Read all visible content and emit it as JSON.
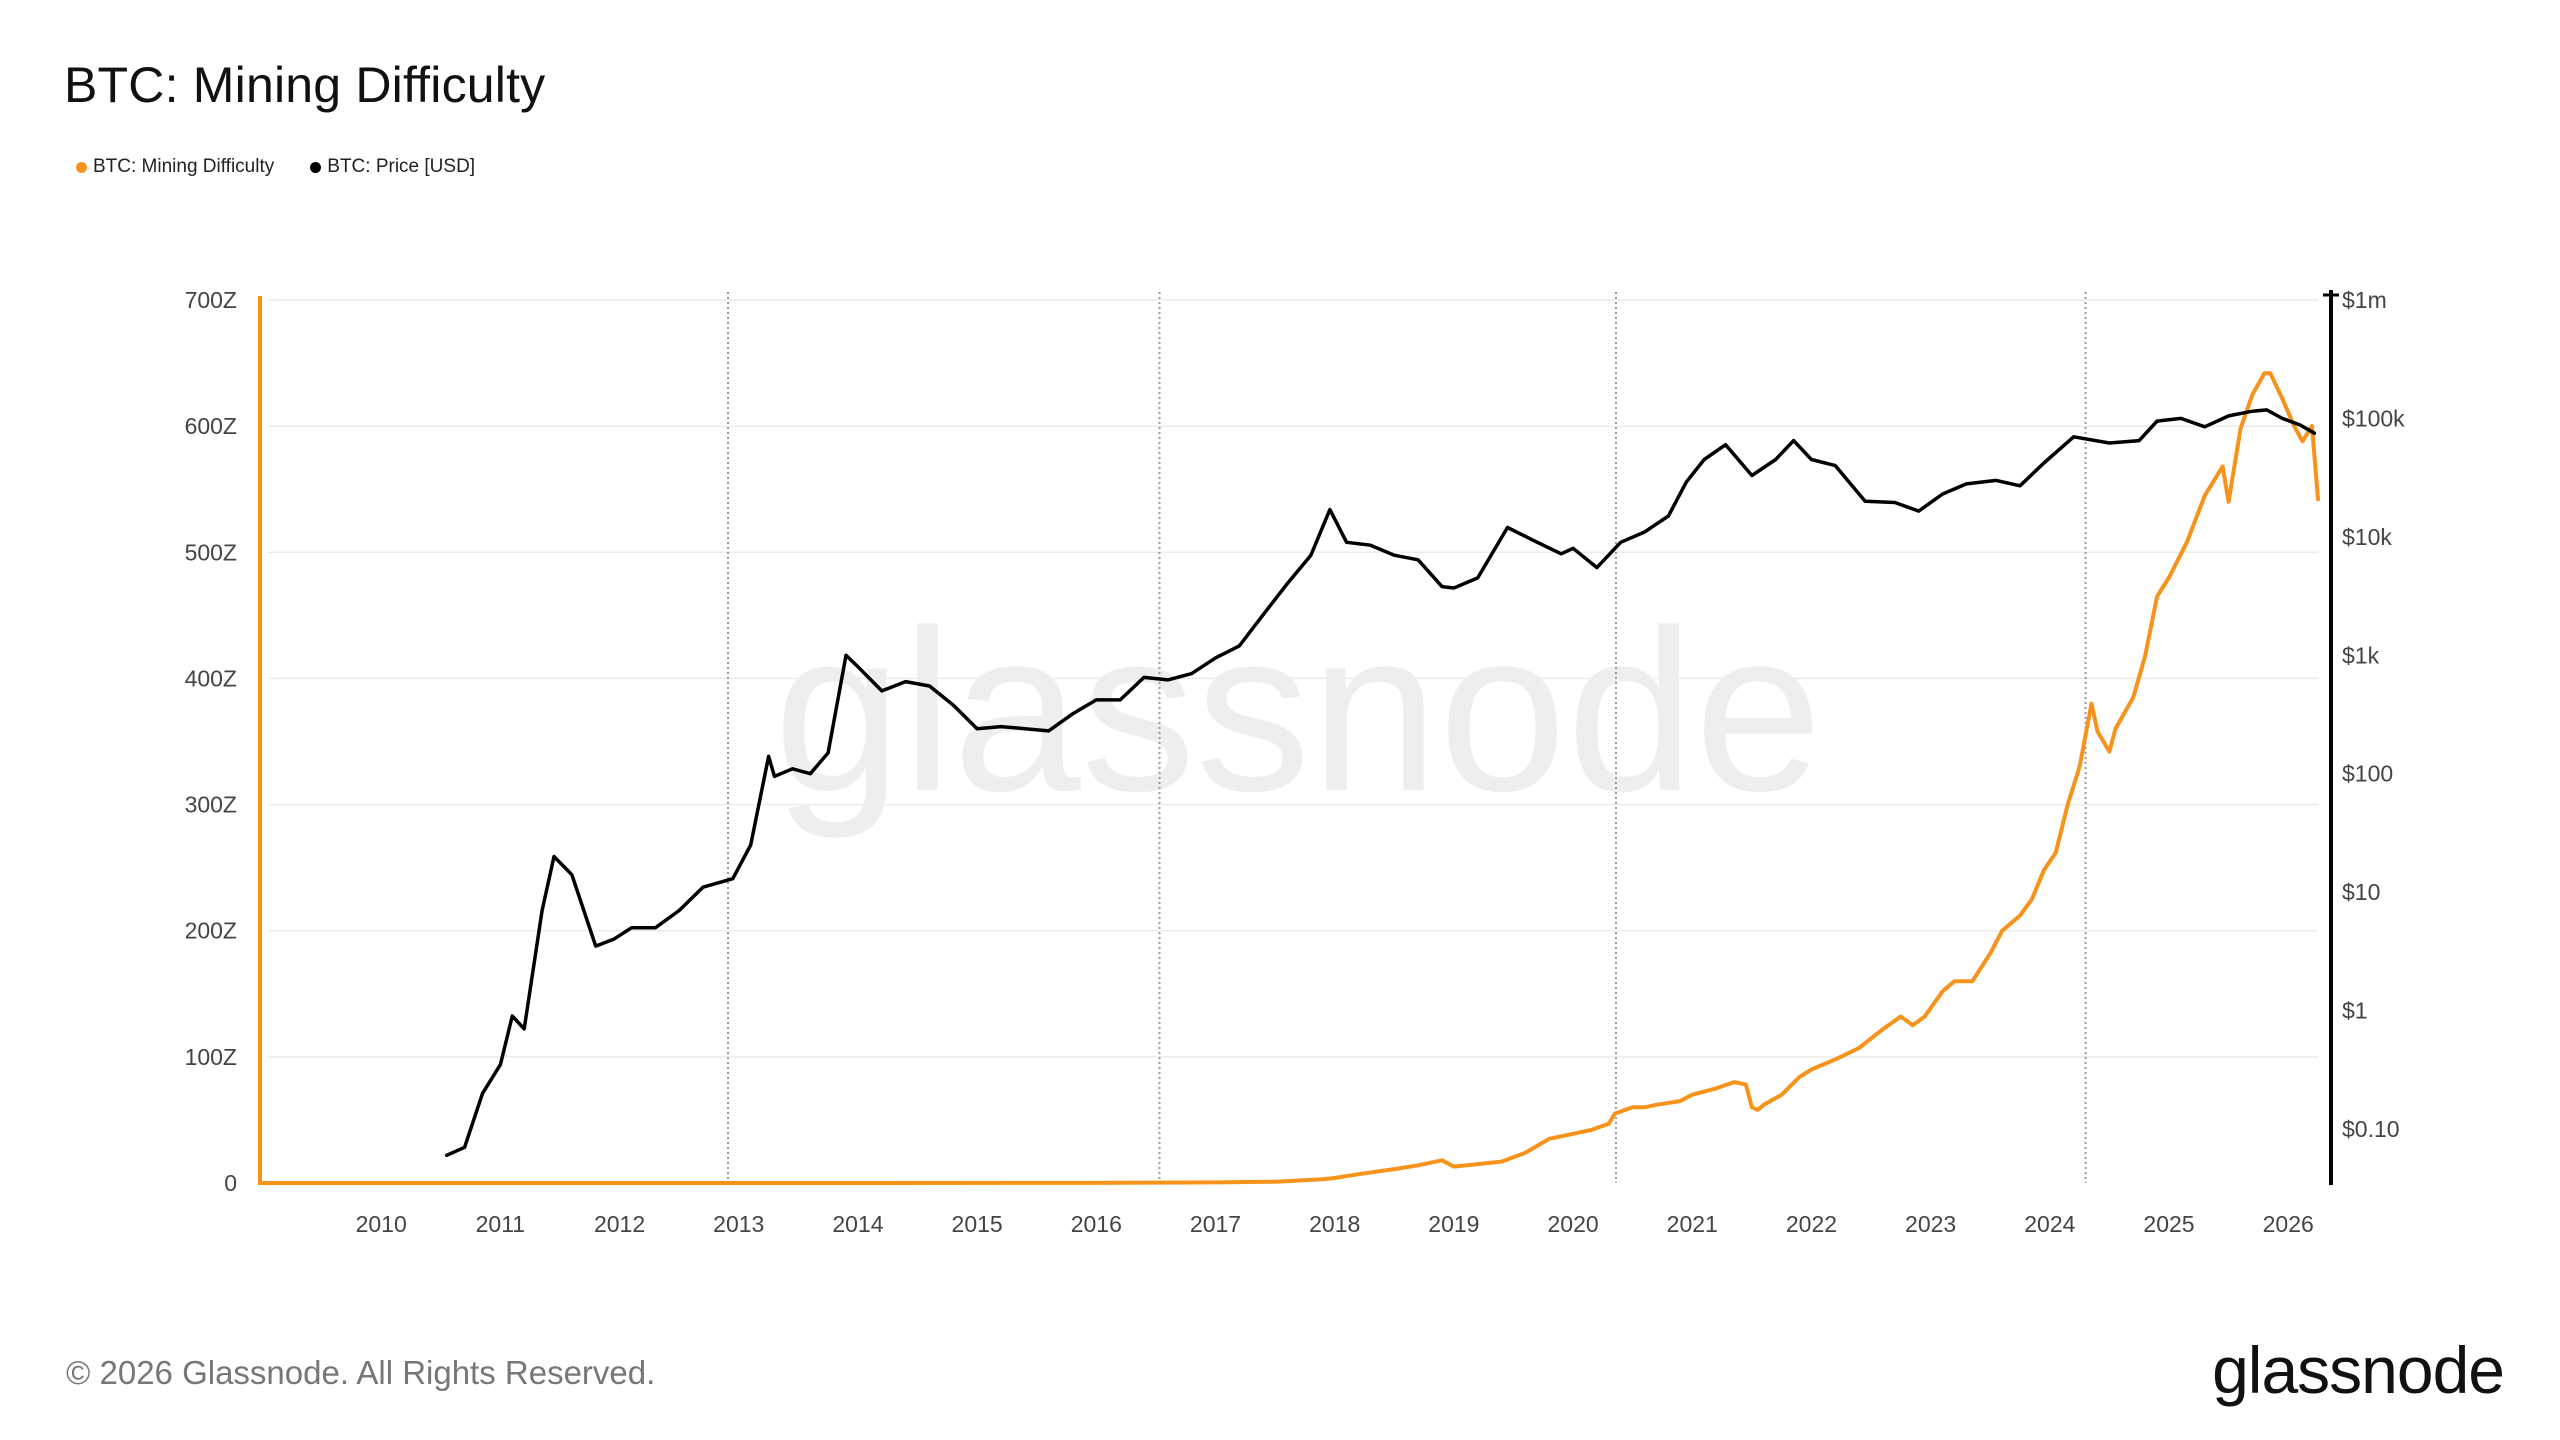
{
  "title": "BTC: Mining Difficulty",
  "legend": [
    {
      "label": "BTC: Mining Difficulty",
      "color": "#f7931a"
    },
    {
      "label": "BTC: Price [USD]",
      "color": "#000000"
    }
  ],
  "footer": "© 2026 Glassnode. All Rights Reserved.",
  "brand": "glassnode",
  "watermark": "glassnode",
  "colors": {
    "difficulty": "#f7931a",
    "price": "#000000",
    "grid": "#ececec",
    "vline": "#9a9a9a"
  },
  "chart_data": {
    "type": "line",
    "title": "BTC: Mining Difficulty",
    "x_ticks": [
      "2010",
      "2011",
      "2012",
      "2013",
      "2014",
      "2015",
      "2016",
      "2017",
      "2018",
      "2019",
      "2020",
      "2021",
      "2022",
      "2023",
      "2024",
      "2025",
      "2026"
    ],
    "x_range": [
      2009.0,
      2026.25
    ],
    "left_axis": {
      "unit": "Z",
      "ticks": [
        "0",
        "100Z",
        "200Z",
        "300Z",
        "400Z",
        "500Z",
        "600Z",
        "700Z"
      ],
      "range": [
        0,
        700
      ]
    },
    "right_axis": {
      "scale": "log",
      "ticks": [
        "$0.10",
        "$1",
        "$10",
        "$100",
        "$1k",
        "$10k",
        "$100k",
        "$1m"
      ],
      "range": [
        0.035,
        1000000
      ]
    },
    "halving_dates": [
      2012.91,
      2016.53,
      2020.36,
      2024.3
    ],
    "grid": true,
    "legend_position": "top-left",
    "series": [
      {
        "name": "BTC: Mining Difficulty",
        "axis": "left",
        "color": "#f7931a",
        "points": [
          [
            2009.0,
            0
          ],
          [
            2014.0,
            0
          ],
          [
            2016.0,
            0.1
          ],
          [
            2016.5,
            0.3
          ],
          [
            2017.0,
            0.5
          ],
          [
            2017.5,
            1
          ],
          [
            2017.9,
            3
          ],
          [
            2018.0,
            4
          ],
          [
            2018.2,
            7
          ],
          [
            2018.5,
            11
          ],
          [
            2018.7,
            14
          ],
          [
            2018.9,
            18
          ],
          [
            2019.0,
            13
          ],
          [
            2019.2,
            15
          ],
          [
            2019.4,
            17
          ],
          [
            2019.6,
            24
          ],
          [
            2019.8,
            35
          ],
          [
            2019.95,
            38
          ],
          [
            2020.15,
            42
          ],
          [
            2020.3,
            47
          ],
          [
            2020.35,
            55
          ],
          [
            2020.5,
            60
          ],
          [
            2020.6,
            60
          ],
          [
            2020.7,
            62
          ],
          [
            2020.9,
            65
          ],
          [
            2021.0,
            70
          ],
          [
            2021.2,
            75
          ],
          [
            2021.35,
            80
          ],
          [
            2021.45,
            78
          ],
          [
            2021.5,
            60
          ],
          [
            2021.55,
            58
          ],
          [
            2021.6,
            62
          ],
          [
            2021.75,
            70
          ],
          [
            2021.9,
            84
          ],
          [
            2022.0,
            90
          ],
          [
            2022.2,
            98
          ],
          [
            2022.4,
            107
          ],
          [
            2022.6,
            122
          ],
          [
            2022.75,
            132
          ],
          [
            2022.85,
            125
          ],
          [
            2022.95,
            132
          ],
          [
            2023.1,
            152
          ],
          [
            2023.2,
            160
          ],
          [
            2023.35,
            160
          ],
          [
            2023.5,
            182
          ],
          [
            2023.6,
            200
          ],
          [
            2023.75,
            212
          ],
          [
            2023.85,
            225
          ],
          [
            2023.95,
            248
          ],
          [
            2024.05,
            262
          ],
          [
            2024.15,
            300
          ],
          [
            2024.25,
            330
          ],
          [
            2024.35,
            380
          ],
          [
            2024.4,
            358
          ],
          [
            2024.5,
            342
          ],
          [
            2024.55,
            360
          ],
          [
            2024.7,
            385
          ],
          [
            2024.8,
            418
          ],
          [
            2024.9,
            465
          ],
          [
            2025.0,
            480
          ],
          [
            2025.15,
            508
          ],
          [
            2025.3,
            545
          ],
          [
            2025.45,
            568
          ],
          [
            2025.5,
            540
          ],
          [
            2025.6,
            598
          ],
          [
            2025.7,
            625
          ],
          [
            2025.8,
            642
          ],
          [
            2025.85,
            642
          ],
          [
            2025.95,
            622
          ],
          [
            2026.05,
            600
          ],
          [
            2026.12,
            588
          ],
          [
            2026.2,
            600
          ],
          [
            2026.25,
            542
          ]
        ]
      },
      {
        "name": "BTC: Price [USD]",
        "axis": "right",
        "color": "#000000",
        "points": [
          [
            2010.55,
            0.06
          ],
          [
            2010.7,
            0.07
          ],
          [
            2010.85,
            0.2
          ],
          [
            2011.0,
            0.35
          ],
          [
            2011.1,
            0.9
          ],
          [
            2011.2,
            0.7
          ],
          [
            2011.35,
            7
          ],
          [
            2011.45,
            20
          ],
          [
            2011.6,
            14
          ],
          [
            2011.8,
            3.5
          ],
          [
            2011.95,
            4
          ],
          [
            2012.1,
            5
          ],
          [
            2012.3,
            5
          ],
          [
            2012.5,
            7
          ],
          [
            2012.7,
            11
          ],
          [
            2012.95,
            13
          ],
          [
            2013.1,
            25
          ],
          [
            2013.25,
            140
          ],
          [
            2013.3,
            95
          ],
          [
            2013.45,
            110
          ],
          [
            2013.6,
            100
          ],
          [
            2013.75,
            150
          ],
          [
            2013.9,
            1000
          ],
          [
            2014.0,
            800
          ],
          [
            2014.2,
            500
          ],
          [
            2014.4,
            600
          ],
          [
            2014.6,
            550
          ],
          [
            2014.8,
            380
          ],
          [
            2015.0,
            240
          ],
          [
            2015.2,
            250
          ],
          [
            2015.4,
            240
          ],
          [
            2015.6,
            230
          ],
          [
            2015.8,
            320
          ],
          [
            2016.0,
            420
          ],
          [
            2016.2,
            420
          ],
          [
            2016.4,
            650
          ],
          [
            2016.6,
            620
          ],
          [
            2016.8,
            700
          ],
          [
            2017.0,
            950
          ],
          [
            2017.2,
            1200
          ],
          [
            2017.4,
            2200
          ],
          [
            2017.6,
            4000
          ],
          [
            2017.8,
            7000
          ],
          [
            2017.96,
            17000
          ],
          [
            2018.1,
            9000
          ],
          [
            2018.3,
            8500
          ],
          [
            2018.5,
            7000
          ],
          [
            2018.7,
            6400
          ],
          [
            2018.9,
            3800
          ],
          [
            2019.0,
            3700
          ],
          [
            2019.2,
            4500
          ],
          [
            2019.45,
            12000
          ],
          [
            2019.7,
            9000
          ],
          [
            2019.9,
            7200
          ],
          [
            2020.0,
            8000
          ],
          [
            2020.2,
            5500
          ],
          [
            2020.4,
            9000
          ],
          [
            2020.6,
            11000
          ],
          [
            2020.8,
            15000
          ],
          [
            2020.95,
            29000
          ],
          [
            2021.1,
            45000
          ],
          [
            2021.28,
            60000
          ],
          [
            2021.5,
            33000
          ],
          [
            2021.7,
            45000
          ],
          [
            2021.85,
            65000
          ],
          [
            2022.0,
            45000
          ],
          [
            2022.2,
            40000
          ],
          [
            2022.45,
            20000
          ],
          [
            2022.7,
            19500
          ],
          [
            2022.9,
            16500
          ],
          [
            2023.1,
            23000
          ],
          [
            2023.3,
            28000
          ],
          [
            2023.55,
            30000
          ],
          [
            2023.75,
            27000
          ],
          [
            2023.95,
            42000
          ],
          [
            2024.2,
            70000
          ],
          [
            2024.5,
            62000
          ],
          [
            2024.75,
            65000
          ],
          [
            2024.9,
            95000
          ],
          [
            2025.1,
            100000
          ],
          [
            2025.3,
            85000
          ],
          [
            2025.5,
            105000
          ],
          [
            2025.7,
            115000
          ],
          [
            2025.82,
            118000
          ],
          [
            2025.95,
            100000
          ],
          [
            2026.1,
            88000
          ],
          [
            2026.22,
            75000
          ]
        ]
      }
    ]
  }
}
